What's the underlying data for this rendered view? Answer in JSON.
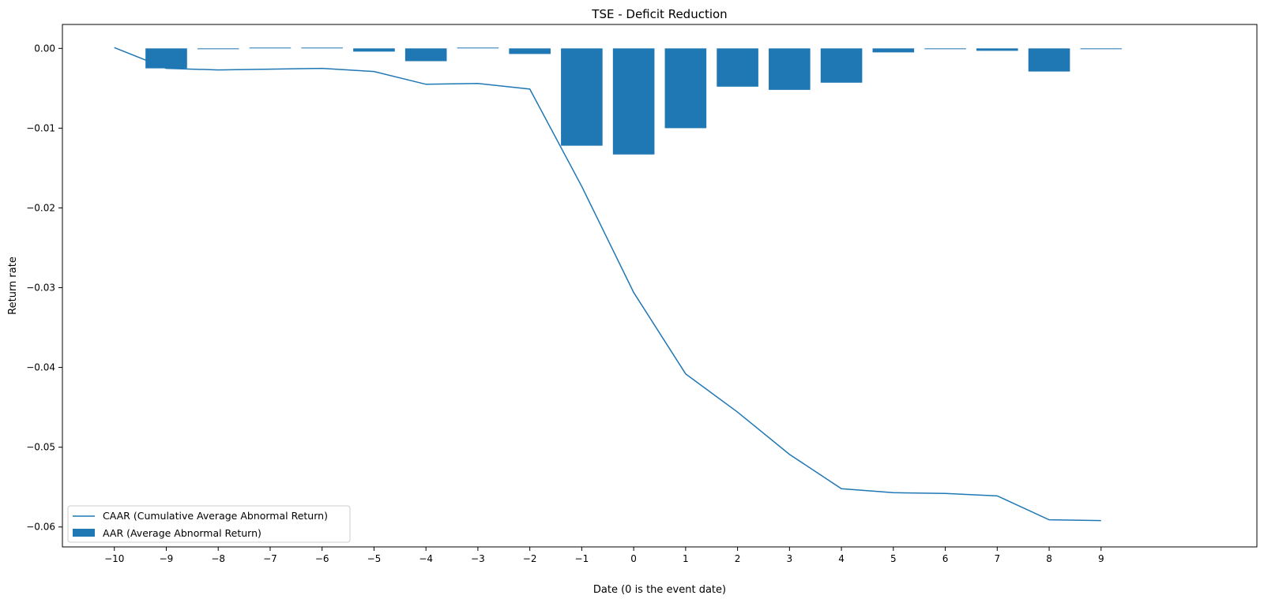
{
  "chart_data": {
    "type": "bar",
    "title": "TSE - Deficit Reduction",
    "xlabel": "Date (0 is the event date)",
    "ylabel": "Return rate",
    "xlim": [
      -11,
      12
    ],
    "ylim": [
      -0.0625,
      0.003
    ],
    "x_ticks": [
      -10,
      -9,
      -8,
      -7,
      -6,
      -5,
      -4,
      -3,
      -2,
      -1,
      0,
      1,
      2,
      3,
      4,
      5,
      6,
      7,
      8,
      9
    ],
    "x_tick_labels": [
      "−10",
      "−9",
      "−8",
      "−7",
      "−6",
      "−5",
      "−4",
      "−3",
      "−2",
      "−1",
      "0",
      "1",
      "2",
      "3",
      "4",
      "5",
      "6",
      "7",
      "8",
      "9"
    ],
    "y_ticks": [
      0.0,
      -0.01,
      -0.02,
      -0.03,
      -0.04,
      -0.05,
      -0.06
    ],
    "y_tick_labels": [
      "0.00",
      "−0.01",
      "−0.02",
      "−0.03",
      "−0.04",
      "−0.05",
      "−0.06"
    ],
    "grid": false,
    "legend_position": "lower-left",
    "colors": {
      "bar": "#1f77b4",
      "line": "#1f77b4"
    },
    "series": [
      {
        "name": "CAAR (Cumulative Average Abnormal Return)",
        "type": "line",
        "x": [
          -10,
          -9,
          -8,
          -7,
          -6,
          -5,
          -4,
          -3,
          -2,
          -1,
          0,
          1,
          2,
          3,
          4,
          5,
          6,
          7,
          8,
          9
        ],
        "values": [
          0.0001,
          -0.0025,
          -0.0027,
          -0.0026,
          -0.0025,
          -0.0029,
          -0.0045,
          -0.0044,
          -0.0051,
          -0.0173,
          -0.0306,
          -0.0408,
          -0.0456,
          -0.0509,
          -0.0552,
          -0.0557,
          -0.0558,
          -0.0561,
          -0.0591,
          -0.0592
        ]
      },
      {
        "name": "AAR (Average Abnormal Return)",
        "type": "bar",
        "x": [
          -9,
          -8,
          -7,
          -6,
          -5,
          -4,
          -3,
          -2,
          -1,
          0,
          1,
          2,
          3,
          4,
          5,
          6,
          7,
          8,
          9
        ],
        "values": [
          -0.0025,
          -0.0001,
          0.0001,
          0.0001,
          -0.0004,
          -0.0016,
          0.0001,
          -0.0007,
          -0.0122,
          -0.0133,
          -0.01,
          -0.0048,
          -0.0052,
          -0.0043,
          -0.0005,
          0.0,
          -0.0003,
          -0.0029,
          0.0
        ]
      }
    ]
  }
}
